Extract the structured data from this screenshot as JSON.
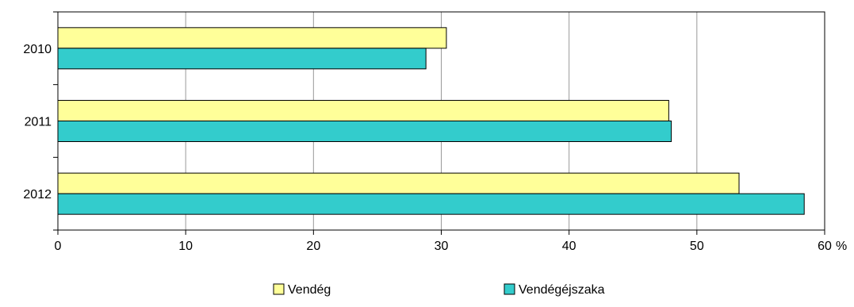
{
  "chart_data": {
    "type": "bar",
    "orientation": "horizontal",
    "categories": [
      "2010",
      "2011",
      "2012"
    ],
    "series": [
      {
        "name": "Vendég",
        "values": [
          30.4,
          47.8,
          53.3
        ],
        "color": "#FFFF99"
      },
      {
        "name": "Vendégéjszaka",
        "values": [
          28.8,
          48.0,
          58.4
        ],
        "color": "#33CCCC"
      }
    ],
    "x_ticks": [
      "0",
      "10",
      "20",
      "30",
      "40",
      "50",
      "60"
    ],
    "xlim": [
      0,
      60
    ],
    "x_unit": "%",
    "grid": "vertical",
    "legend_position": "bottom",
    "title": "",
    "xlabel": "",
    "ylabel": ""
  }
}
